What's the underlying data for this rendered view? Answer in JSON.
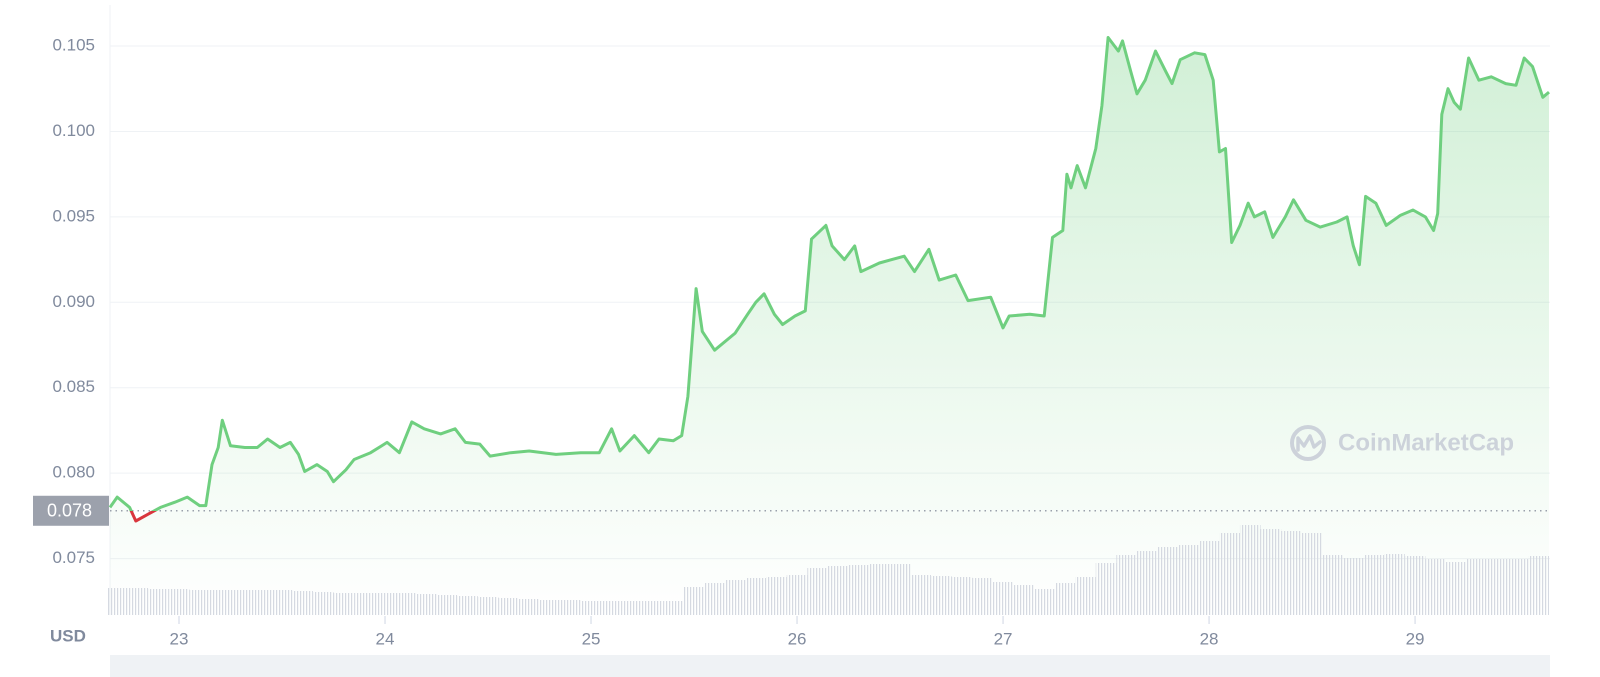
{
  "chart_data": {
    "type": "line",
    "currency": "USD",
    "watermark": "CoinMarketCap",
    "color": "#6fcf7f",
    "down_color": "#d9363e",
    "reference": {
      "value": 0.0778,
      "label": "0.078"
    },
    "xlim": [
      22.665,
      29.655
    ],
    "xticks": [
      23,
      24,
      25,
      26,
      27,
      28,
      29
    ],
    "ylim": [
      0.0717,
      0.1074
    ],
    "yticks": [
      0.075,
      {
        "value": 0.08,
        "label": "0.080"
      },
      0.085,
      {
        "value": 0.09,
        "label": "0.090"
      },
      0.095,
      {
        "value": 0.1,
        "label": "0.100"
      },
      0.105
    ],
    "grid": true,
    "x": [
      22.665,
      22.7,
      22.76,
      22.79,
      22.85,
      22.91,
      22.98,
      23.04,
      23.1,
      23.13,
      23.16,
      23.19,
      23.21,
      23.25,
      23.32,
      23.38,
      23.43,
      23.49,
      23.54,
      23.58,
      23.61,
      23.67,
      23.72,
      23.75,
      23.81,
      23.85,
      23.93,
      24.01,
      24.07,
      24.13,
      24.19,
      24.27,
      24.34,
      24.39,
      24.46,
      24.51,
      24.61,
      24.7,
      24.83,
      24.95,
      25.04,
      25.1,
      25.14,
      25.21,
      25.28,
      25.33,
      25.4,
      25.44,
      25.47,
      25.51,
      25.54,
      25.6,
      25.7,
      25.76,
      25.8,
      25.84,
      25.89,
      25.93,
      25.99,
      26.04,
      26.07,
      26.14,
      26.17,
      26.23,
      26.28,
      26.31,
      26.4,
      26.52,
      26.57,
      26.64,
      26.69,
      26.77,
      26.83,
      26.94,
      27.0,
      27.03,
      27.13,
      27.2,
      27.24,
      27.29,
      27.31,
      27.33,
      27.36,
      27.4,
      27.45,
      27.48,
      27.51,
      27.56,
      27.58,
      27.62,
      27.65,
      27.69,
      27.74,
      27.79,
      27.82,
      27.86,
      27.93,
      27.98,
      28.02,
      28.05,
      28.08,
      28.11,
      28.15,
      28.19,
      28.22,
      28.27,
      28.31,
      28.37,
      28.41,
      28.47,
      28.54,
      28.62,
      28.67,
      28.7,
      28.73,
      28.76,
      28.81,
      28.86,
      28.93,
      28.99,
      29.05,
      29.09,
      29.11,
      29.13,
      29.16,
      29.19,
      29.22,
      29.26,
      29.31,
      29.37,
      29.44,
      29.49,
      29.53,
      29.57,
      29.62,
      29.65
    ],
    "values": [
      0.078,
      0.0786,
      0.078,
      0.0772,
      0.0776,
      0.078,
      0.0783,
      0.0786,
      0.0781,
      0.0781,
      0.0805,
      0.0815,
      0.0831,
      0.0816,
      0.0815,
      0.0815,
      0.082,
      0.0815,
      0.0818,
      0.0811,
      0.0801,
      0.0805,
      0.0801,
      0.0795,
      0.0802,
      0.0808,
      0.0812,
      0.0818,
      0.0812,
      0.083,
      0.0826,
      0.0823,
      0.0826,
      0.0818,
      0.0817,
      0.081,
      0.0812,
      0.0813,
      0.0811,
      0.0812,
      0.0812,
      0.0826,
      0.0813,
      0.0822,
      0.0812,
      0.082,
      0.0819,
      0.0822,
      0.0845,
      0.0908,
      0.0883,
      0.0872,
      0.0882,
      0.0893,
      0.09,
      0.0905,
      0.0893,
      0.0887,
      0.0892,
      0.0895,
      0.0937,
      0.0945,
      0.0933,
      0.0925,
      0.0933,
      0.0918,
      0.0923,
      0.0927,
      0.0918,
      0.0931,
      0.0913,
      0.0916,
      0.0901,
      0.0903,
      0.0885,
      0.0892,
      0.0893,
      0.0892,
      0.0938,
      0.0942,
      0.0975,
      0.0967,
      0.098,
      0.0967,
      0.099,
      0.1015,
      0.1055,
      0.1047,
      0.1053,
      0.1035,
      0.1022,
      0.103,
      0.1047,
      0.1035,
      0.1028,
      0.1042,
      0.1046,
      0.1045,
      0.103,
      0.0988,
      0.099,
      0.0935,
      0.0945,
      0.0958,
      0.095,
      0.0953,
      0.0938,
      0.095,
      0.096,
      0.0948,
      0.0944,
      0.0947,
      0.095,
      0.0933,
      0.0922,
      0.0962,
      0.0958,
      0.0945,
      0.0951,
      0.0954,
      0.095,
      0.0942,
      0.0952,
      0.101,
      0.1025,
      0.1017,
      0.1013,
      0.1043,
      0.103,
      0.1032,
      0.1028,
      0.1027,
      0.1043,
      0.1038,
      0.102,
      0.1023
    ],
    "volume": {
      "axis": "y2",
      "x": [
        22.7,
        22.8,
        22.9,
        23.0,
        23.1,
        23.2,
        23.3,
        23.4,
        23.5,
        23.6,
        23.7,
        23.8,
        23.9,
        24.0,
        24.1,
        24.2,
        24.3,
        24.4,
        24.5,
        24.6,
        24.7,
        24.8,
        24.9,
        25.0,
        25.1,
        25.2,
        25.3,
        25.4,
        25.5,
        25.6,
        25.7,
        25.8,
        25.9,
        26.0,
        26.1,
        26.2,
        26.3,
        26.4,
        26.5,
        26.6,
        26.7,
        26.8,
        26.9,
        27.0,
        27.1,
        27.2,
        27.3,
        27.4,
        27.5,
        27.6,
        27.7,
        27.8,
        27.9,
        28.0,
        28.1,
        28.2,
        28.3,
        28.4,
        28.5,
        28.6,
        28.7,
        28.8,
        28.9,
        29.0,
        29.1,
        29.2,
        29.3,
        29.4,
        29.5,
        29.6
      ],
      "values": [
        27,
        27,
        26,
        26,
        25,
        25,
        25,
        25,
        25,
        24,
        23,
        22,
        22,
        22,
        22,
        21,
        20,
        19,
        18,
        17,
        16,
        15,
        15,
        14,
        14,
        14,
        14,
        14,
        28,
        32,
        35,
        37,
        38,
        40,
        47,
        49,
        50,
        51,
        51,
        40,
        39,
        38,
        37,
        33,
        30,
        26,
        32,
        38,
        52,
        60,
        64,
        68,
        70,
        74,
        82,
        90,
        86,
        84,
        82,
        60,
        57,
        60,
        61,
        59,
        56,
        53,
        56,
        56,
        56,
        59
      ]
    },
    "y2lim": [
      0,
      610
    ]
  }
}
